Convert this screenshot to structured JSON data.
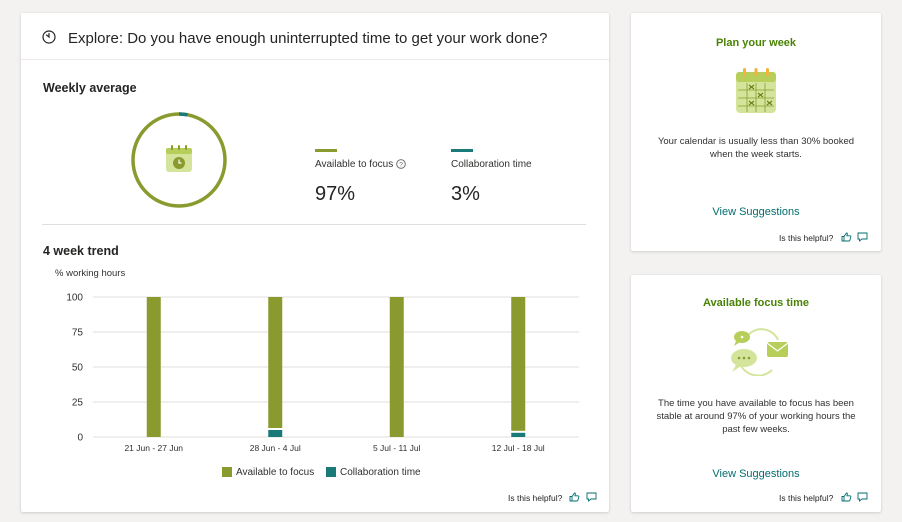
{
  "main": {
    "header_title": "Explore: Do you have enough uninterrupted time to get your work done?",
    "weekly_average_title": "Weekly average",
    "metrics": [
      {
        "label": "Available to focus",
        "value": "97%",
        "color": "#8a9a2e"
      },
      {
        "label": "Collaboration time",
        "value": "3%",
        "color": "#1a7a7a"
      }
    ],
    "donut": {
      "focus_percent": 97,
      "collab_percent": 3
    },
    "trend_title": "4 week trend",
    "helpful_label": "Is this helpful?"
  },
  "chart_data": {
    "type": "bar",
    "ylabel": "% working hours",
    "ylim": [
      0,
      100
    ],
    "yticks": [
      "100",
      "75",
      "50",
      "25",
      "0"
    ],
    "categories": [
      "21 Jun - 27 Jun",
      "28 Jun - 4 Jul",
      "5 Jul - 11 Jul",
      "12 Jul - 18 Jul"
    ],
    "series": [
      {
        "name": "Available to focus",
        "color": "#8a9a2e",
        "values": [
          100,
          95,
          100,
          97
        ]
      },
      {
        "name": "Collaboration time",
        "color": "#1a7a7a",
        "values": [
          0,
          5,
          0,
          3
        ]
      }
    ]
  },
  "plan": {
    "title": "Plan your week",
    "description": "Your calendar is usually less than 30% booked when the week starts.",
    "link": "View Suggestions",
    "helpful_label": "Is this helpful?"
  },
  "focus": {
    "title": "Available focus time",
    "description": "The time you have available to focus has been stable at around 97% of your working hours the past few weeks.",
    "link": "View Suggestions",
    "helpful_label": "Is this helpful?"
  }
}
